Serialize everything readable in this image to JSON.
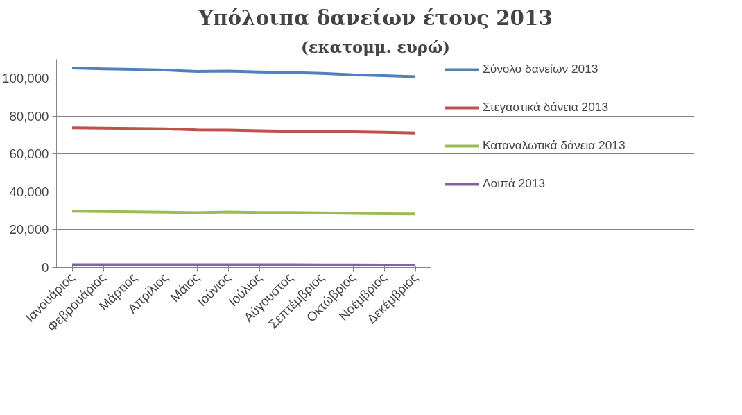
{
  "chart_data": {
    "type": "line",
    "title": "Υπόλοιπα δανείων έτους 2013",
    "subtitle": "(εκατομμ. ευρώ)",
    "categories": [
      "Ιανουάριος",
      "Φεβρουάριος",
      "Μάρτιος",
      "Απρίλιος",
      "Μάιος",
      "Ιούνιος",
      "Ιούλιος",
      "Αύγουστος",
      "Σεπτέμβριος",
      "Οκτώβριος",
      "Νοέμβριος",
      "Δεκέμβριος"
    ],
    "series": [
      {
        "name": "Σύνολο δανείων 2013",
        "color": "#4f81bd",
        "values": [
          105400,
          105000,
          104700,
          104300,
          103600,
          103800,
          103300,
          103000,
          102600,
          101800,
          101400,
          100800
        ]
      },
      {
        "name": "Στεγαστικά δάνεια 2013",
        "color": "#c0504d",
        "values": [
          73800,
          73600,
          73400,
          73200,
          72700,
          72600,
          72200,
          72000,
          71900,
          71700,
          71400,
          71000
        ]
      },
      {
        "name": "Καταναλωτικά δάνεια 2013",
        "color": "#9bbb59",
        "values": [
          29800,
          29600,
          29400,
          29200,
          29000,
          29300,
          29100,
          29100,
          28900,
          28600,
          28400,
          28300
        ]
      },
      {
        "name": "Λοιπά 2013",
        "color": "#8064a2",
        "values": [
          1500,
          1500,
          1500,
          1500,
          1500,
          1500,
          1500,
          1500,
          1400,
          1400,
          1300,
          1300
        ]
      }
    ],
    "ylim": [
      0,
      110000
    ],
    "yticks": [
      {
        "value": 0,
        "label": "0"
      },
      {
        "value": 20000,
        "label": "20,000"
      },
      {
        "value": 40000,
        "label": "40,000"
      },
      {
        "value": 60000,
        "label": "60,000"
      },
      {
        "value": 80000,
        "label": "80,000"
      },
      {
        "value": 100000,
        "label": "100,000"
      }
    ],
    "grid": "y",
    "legend": "right",
    "marker": "none",
    "line_style": "solid"
  }
}
